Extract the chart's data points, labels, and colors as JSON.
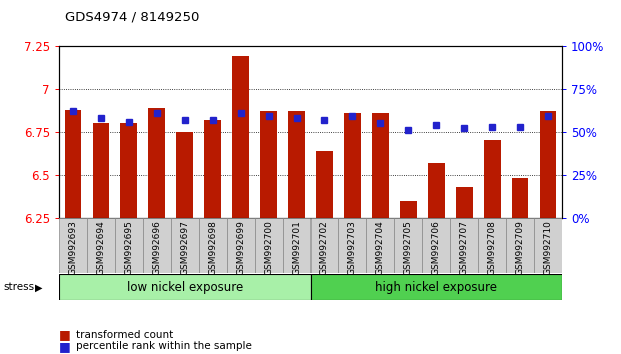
{
  "title": "GDS4974 / 8149250",
  "samples": [
    "GSM992693",
    "GSM992694",
    "GSM992695",
    "GSM992696",
    "GSM992697",
    "GSM992698",
    "GSM992699",
    "GSM992700",
    "GSM992701",
    "GSM992702",
    "GSM992703",
    "GSM992704",
    "GSM992705",
    "GSM992706",
    "GSM992707",
    "GSM992708",
    "GSM992709",
    "GSM992710"
  ],
  "bar_values": [
    6.88,
    6.8,
    6.8,
    6.89,
    6.75,
    6.82,
    7.19,
    6.87,
    6.87,
    6.64,
    6.86,
    6.86,
    6.35,
    6.57,
    6.43,
    6.7,
    6.48,
    6.87
  ],
  "percentile_values": [
    62,
    58,
    56,
    61,
    57,
    57,
    61,
    59,
    58,
    57,
    59,
    55,
    51,
    54,
    52,
    53,
    53,
    59
  ],
  "bar_color": "#b81a00",
  "dot_color": "#2222cc",
  "ylim_left": [
    6.25,
    7.25
  ],
  "ylim_right": [
    0,
    100
  ],
  "yticks_left": [
    6.25,
    6.5,
    6.75,
    7.0,
    7.25
  ],
  "ytick_labels_left": [
    "6.25",
    "6.5",
    "6.75",
    "7",
    "7.25"
  ],
  "yticks_right": [
    0,
    25,
    50,
    75,
    100
  ],
  "ytick_labels_right": [
    "0%",
    "25%",
    "50%",
    "75%",
    "100%"
  ],
  "group1_label": "low nickel exposure",
  "group2_label": "high nickel exposure",
  "group1_count": 9,
  "group2_count": 9,
  "stress_label": "stress",
  "legend1": "transformed count",
  "legend2": "percentile rank within the sample",
  "plot_bg": "#ffffff",
  "group1_color": "#a8f0a8",
  "group2_color": "#50d050",
  "xtick_bg": "#d0d0d0",
  "xtick_border": "#888888"
}
